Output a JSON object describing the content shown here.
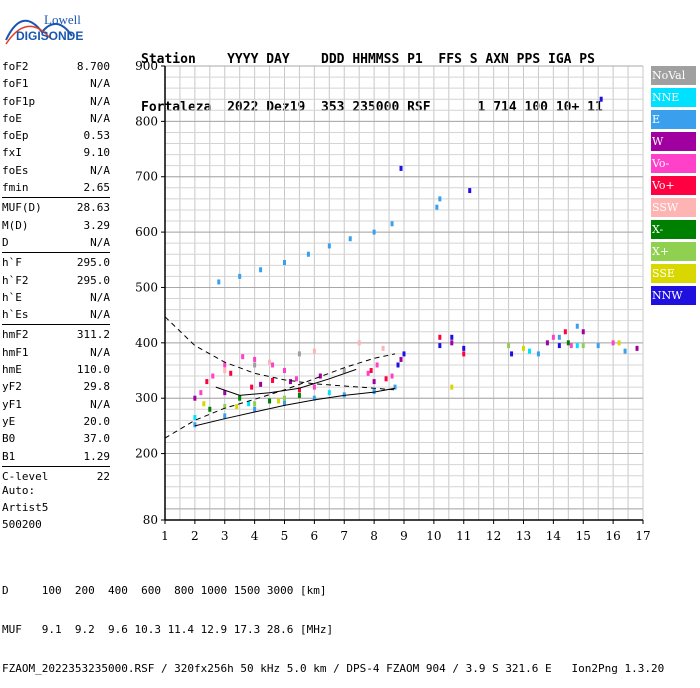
{
  "logo": {
    "line1": "Lowell",
    "line2": "DIGISONDE",
    "color": "#1a56b0"
  },
  "header": {
    "line1": "Station    YYYY DAY    DDD HHMMSS P1  FFS S AXN PPS IGA PS",
    "line2": "Fortaleza  2022 Dez19  353 235000 RSF      1 714 100 10+ 11"
  },
  "params": [
    [
      {
        "name": "foF2",
        "value": "8.700"
      },
      {
        "name": "foF1",
        "value": "N/A"
      },
      {
        "name": "foF1p",
        "value": "N/A"
      },
      {
        "name": "foE",
        "value": "N/A"
      },
      {
        "name": "foEp",
        "value": "0.53"
      },
      {
        "name": "fxI",
        "value": "9.10"
      },
      {
        "name": "foEs",
        "value": "N/A"
      },
      {
        "name": "fmin",
        "value": "2.65"
      }
    ],
    [
      {
        "name": "MUF(D)",
        "value": "28.63"
      },
      {
        "name": "M(D)",
        "value": "3.29"
      },
      {
        "name": "D",
        "value": "N/A"
      }
    ],
    [
      {
        "name": "h`F",
        "value": "295.0"
      },
      {
        "name": "h`F2",
        "value": "295.0"
      },
      {
        "name": "h`E",
        "value": "N/A"
      },
      {
        "name": "h`Es",
        "value": "N/A"
      }
    ],
    [
      {
        "name": "hmF2",
        "value": "311.2"
      },
      {
        "name": "hmF1",
        "value": "N/A"
      },
      {
        "name": "hmE",
        "value": "110.0"
      },
      {
        "name": "yF2",
        "value": "29.8"
      },
      {
        "name": "yF1",
        "value": "N/A"
      },
      {
        "name": "yE",
        "value": "20.0"
      },
      {
        "name": "B0",
        "value": "37.0"
      },
      {
        "name": "B1",
        "value": "1.29"
      }
    ],
    [
      {
        "name": "C-level",
        "value": "22"
      }
    ]
  ],
  "auto": [
    "Auto:",
    "Artist5",
    "500200"
  ],
  "legend": [
    {
      "label": "NoVal",
      "color": "#a0a0a0"
    },
    {
      "label": "NNE",
      "color": "#00e0ff"
    },
    {
      "label": "E",
      "color": "#3aa0ee"
    },
    {
      "label": "W",
      "color": "#a000a0"
    },
    {
      "label": "Vo-",
      "color": "#ff40c8"
    },
    {
      "label": "Vo+",
      "color": "#ff0040"
    },
    {
      "label": "SSW",
      "color": "#ffb4b4"
    },
    {
      "label": "X-",
      "color": "#008000"
    },
    {
      "label": "X+",
      "color": "#90d050"
    },
    {
      "label": "SSE",
      "color": "#d8d800"
    },
    {
      "label": "NNW",
      "color": "#2010e0"
    }
  ],
  "footer": {
    "d_row": "D     100  200  400  600  800 1000 1500 3000 [km]",
    "muf_row": "MUF   9.1  9.2  9.6 10.3 11.4 12.9 17.3 28.6 [MHz]",
    "file_row": "FZAOM_2022353235000.RSF / 320fx256h 50 kHz 5.0 km / DPS-4 FZAOM 904 / 3.9 S 321.6 E   Ion2Png 1.3.20"
  },
  "chart_data": {
    "type": "scatter",
    "xlim": [
      1,
      17
    ],
    "ylim": [
      80,
      900
    ],
    "x_ticks": [
      "1",
      "2",
      "3",
      "4",
      "5",
      "6",
      "7",
      "8",
      "9",
      "10",
      "11",
      "12",
      "13",
      "14",
      "15",
      "16",
      "17"
    ],
    "y_ticks": [
      "80",
      "200",
      "300",
      "400",
      "500",
      "600",
      "700",
      "800",
      "900"
    ],
    "grid": true,
    "series": [
      {
        "name": "E",
        "color": "#3aa0ee",
        "points": [
          [
            2.0,
            252
          ],
          [
            3.0,
            268
          ],
          [
            4.0,
            280
          ],
          [
            5.0,
            291
          ],
          [
            6.0,
            300
          ],
          [
            7.0,
            306
          ],
          [
            8.0,
            312
          ],
          [
            8.7,
            320
          ],
          [
            2.8,
            510
          ],
          [
            3.5,
            520
          ],
          [
            4.2,
            532
          ],
          [
            5.0,
            545
          ],
          [
            5.8,
            560
          ],
          [
            6.5,
            575
          ],
          [
            7.2,
            588
          ],
          [
            8.0,
            600
          ],
          [
            8.6,
            615
          ],
          [
            10.1,
            645
          ],
          [
            10.2,
            660
          ],
          [
            13.5,
            380
          ],
          [
            14.2,
            410
          ],
          [
            14.8,
            430
          ],
          [
            15.5,
            395
          ],
          [
            16.4,
            385
          ]
        ]
      },
      {
        "name": "Vo-",
        "color": "#ff40c8",
        "points": [
          [
            2.2,
            310
          ],
          [
            2.6,
            340
          ],
          [
            3.0,
            360
          ],
          [
            3.6,
            375
          ],
          [
            4.0,
            370
          ],
          [
            4.6,
            360
          ],
          [
            5.0,
            350
          ],
          [
            5.4,
            335
          ],
          [
            6.0,
            320
          ],
          [
            7.8,
            345
          ],
          [
            8.1,
            360
          ],
          [
            8.6,
            340
          ],
          [
            14.0,
            410
          ],
          [
            14.6,
            395
          ],
          [
            16.0,
            400
          ]
        ]
      },
      {
        "name": "Vo+",
        "color": "#ff0040",
        "points": [
          [
            2.4,
            330
          ],
          [
            3.2,
            345
          ],
          [
            3.9,
            320
          ],
          [
            4.6,
            332
          ],
          [
            5.5,
            315
          ],
          [
            7.9,
            350
          ],
          [
            8.4,
            335
          ],
          [
            10.2,
            410
          ],
          [
            11.0,
            380
          ],
          [
            14.4,
            420
          ]
        ]
      },
      {
        "name": "W",
        "color": "#a000a0",
        "points": [
          [
            2.0,
            300
          ],
          [
            3.0,
            310
          ],
          [
            4.2,
            325
          ],
          [
            5.2,
            330
          ],
          [
            6.2,
            340
          ],
          [
            8.0,
            330
          ],
          [
            8.9,
            370
          ],
          [
            10.6,
            400
          ],
          [
            13.8,
            400
          ],
          [
            15.0,
            420
          ],
          [
            16.8,
            390
          ]
        ]
      },
      {
        "name": "NNW",
        "color": "#2010e0",
        "points": [
          [
            8.8,
            360
          ],
          [
            9.0,
            380
          ],
          [
            10.2,
            395
          ],
          [
            10.6,
            410
          ],
          [
            11.0,
            390
          ],
          [
            12.6,
            380
          ],
          [
            14.2,
            395
          ],
          [
            15.6,
            840
          ],
          [
            8.9,
            715
          ],
          [
            11.2,
            675
          ]
        ]
      },
      {
        "name": "X-",
        "color": "#008000",
        "points": [
          [
            2.5,
            280
          ],
          [
            3.5,
            300
          ],
          [
            4.5,
            295
          ],
          [
            5.5,
            305
          ],
          [
            14.5,
            400
          ]
        ]
      },
      {
        "name": "X+",
        "color": "#90d050",
        "points": [
          [
            3.0,
            285
          ],
          [
            4.0,
            290
          ],
          [
            5.0,
            300
          ],
          [
            12.5,
            395
          ],
          [
            15.0,
            395
          ]
        ]
      },
      {
        "name": "SSE",
        "color": "#d8d800",
        "points": [
          [
            2.3,
            290
          ],
          [
            3.4,
            285
          ],
          [
            4.8,
            295
          ],
          [
            10.6,
            320
          ],
          [
            13.0,
            390
          ],
          [
            16.2,
            400
          ]
        ]
      },
      {
        "name": "NNE",
        "color": "#00e0ff",
        "points": [
          [
            2.0,
            265
          ],
          [
            3.8,
            290
          ],
          [
            6.5,
            310
          ],
          [
            13.2,
            385
          ],
          [
            14.8,
            395
          ]
        ]
      },
      {
        "name": "SSW",
        "color": "#ffb4b4",
        "points": [
          [
            3.0,
            350
          ],
          [
            4.5,
            365
          ],
          [
            6.0,
            385
          ],
          [
            7.5,
            400
          ],
          [
            8.3,
            390
          ]
        ]
      },
      {
        "name": "NoVal",
        "color": "#a0a0a0",
        "points": [
          [
            4.0,
            360
          ],
          [
            5.5,
            380
          ],
          [
            7.0,
            350
          ]
        ]
      }
    ],
    "profile_curves": [
      {
        "style": "dashed",
        "points": [
          [
            1.0,
            228
          ],
          [
            2.0,
            260
          ],
          [
            3.0,
            282
          ],
          [
            4.0,
            298
          ],
          [
            5.0,
            315
          ],
          [
            6.0,
            335
          ],
          [
            7.0,
            355
          ],
          [
            8.0,
            372
          ],
          [
            8.7,
            380
          ]
        ]
      },
      {
        "style": "dashed",
        "points": [
          [
            1.0,
            447
          ],
          [
            2.0,
            395
          ],
          [
            3.0,
            365
          ],
          [
            4.0,
            345
          ],
          [
            5.0,
            333
          ],
          [
            6.0,
            326
          ],
          [
            7.0,
            322
          ],
          [
            8.0,
            318
          ],
          [
            8.7,
            315
          ]
        ]
      },
      {
        "style": "solid",
        "points": [
          [
            2.0,
            250
          ],
          [
            3.0,
            263
          ],
          [
            4.0,
            275
          ],
          [
            5.0,
            287
          ],
          [
            6.0,
            297
          ],
          [
            7.0,
            305
          ],
          [
            8.0,
            311
          ],
          [
            8.7,
            318
          ]
        ]
      },
      {
        "style": "solid",
        "points": [
          [
            2.7,
            320
          ],
          [
            3.5,
            305
          ],
          [
            4.5,
            310
          ],
          [
            5.5,
            318
          ],
          [
            6.5,
            335
          ],
          [
            7.4,
            352
          ]
        ]
      }
    ]
  }
}
